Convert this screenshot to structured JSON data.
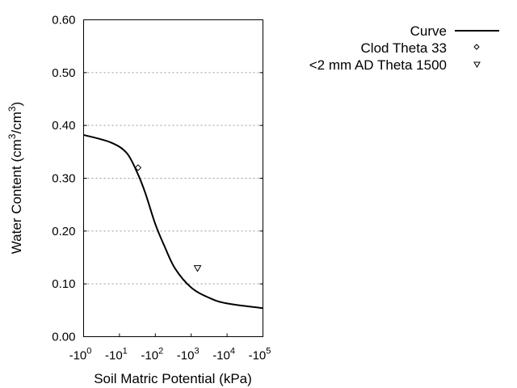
{
  "chart_data": {
    "type": "line",
    "xlabel": "Soil Matric Potential (kPa)",
    "ylabel_parts": [
      "Water Content (cm",
      "3",
      "/cm",
      "3",
      ")"
    ],
    "x_scale": "log",
    "x_axis_reversed_sign": true,
    "xlim": [
      1,
      100000
    ],
    "ylim": [
      0,
      0.6
    ],
    "x_ticks": [
      {
        "value": 1,
        "base": "-10",
        "exp": "0"
      },
      {
        "value": 10,
        "base": "-10",
        "exp": "1"
      },
      {
        "value": 100,
        "base": "-10",
        "exp": "2"
      },
      {
        "value": 1000,
        "base": "-10",
        "exp": "3"
      },
      {
        "value": 10000,
        "base": "-10",
        "exp": "4"
      },
      {
        "value": 100000,
        "base": "-10",
        "exp": "5"
      }
    ],
    "y_ticks": [
      {
        "value": 0.0,
        "label": "0.00"
      },
      {
        "value": 0.1,
        "label": "0.10"
      },
      {
        "value": 0.2,
        "label": "0.20"
      },
      {
        "value": 0.3,
        "label": "0.30"
      },
      {
        "value": 0.4,
        "label": "0.40"
      },
      {
        "value": 0.5,
        "label": "0.50"
      },
      {
        "value": 0.6,
        "label": "0.60"
      }
    ],
    "grid": "horizontal dotted",
    "legend_placement": "right, outside",
    "series": [
      {
        "name": "Curve",
        "marker": "line",
        "color": "#000000",
        "x": [
          1,
          5.6,
          15.8,
          31.6,
          52.5,
          100,
          178,
          355,
          1000,
          3310,
          10000,
          100000
        ],
        "y": [
          0.382,
          0.368,
          0.348,
          0.31,
          0.272,
          0.213,
          0.172,
          0.129,
          0.093,
          0.073,
          0.063,
          0.054
        ]
      },
      {
        "name": "Clod Theta 33",
        "marker": "diamond",
        "x": [
          33
        ],
        "y": [
          0.32
        ]
      },
      {
        "name": "<2 mm AD Theta 1500",
        "marker": "triangle-down",
        "x": [
          1500
        ],
        "y": [
          0.13
        ]
      }
    ]
  }
}
